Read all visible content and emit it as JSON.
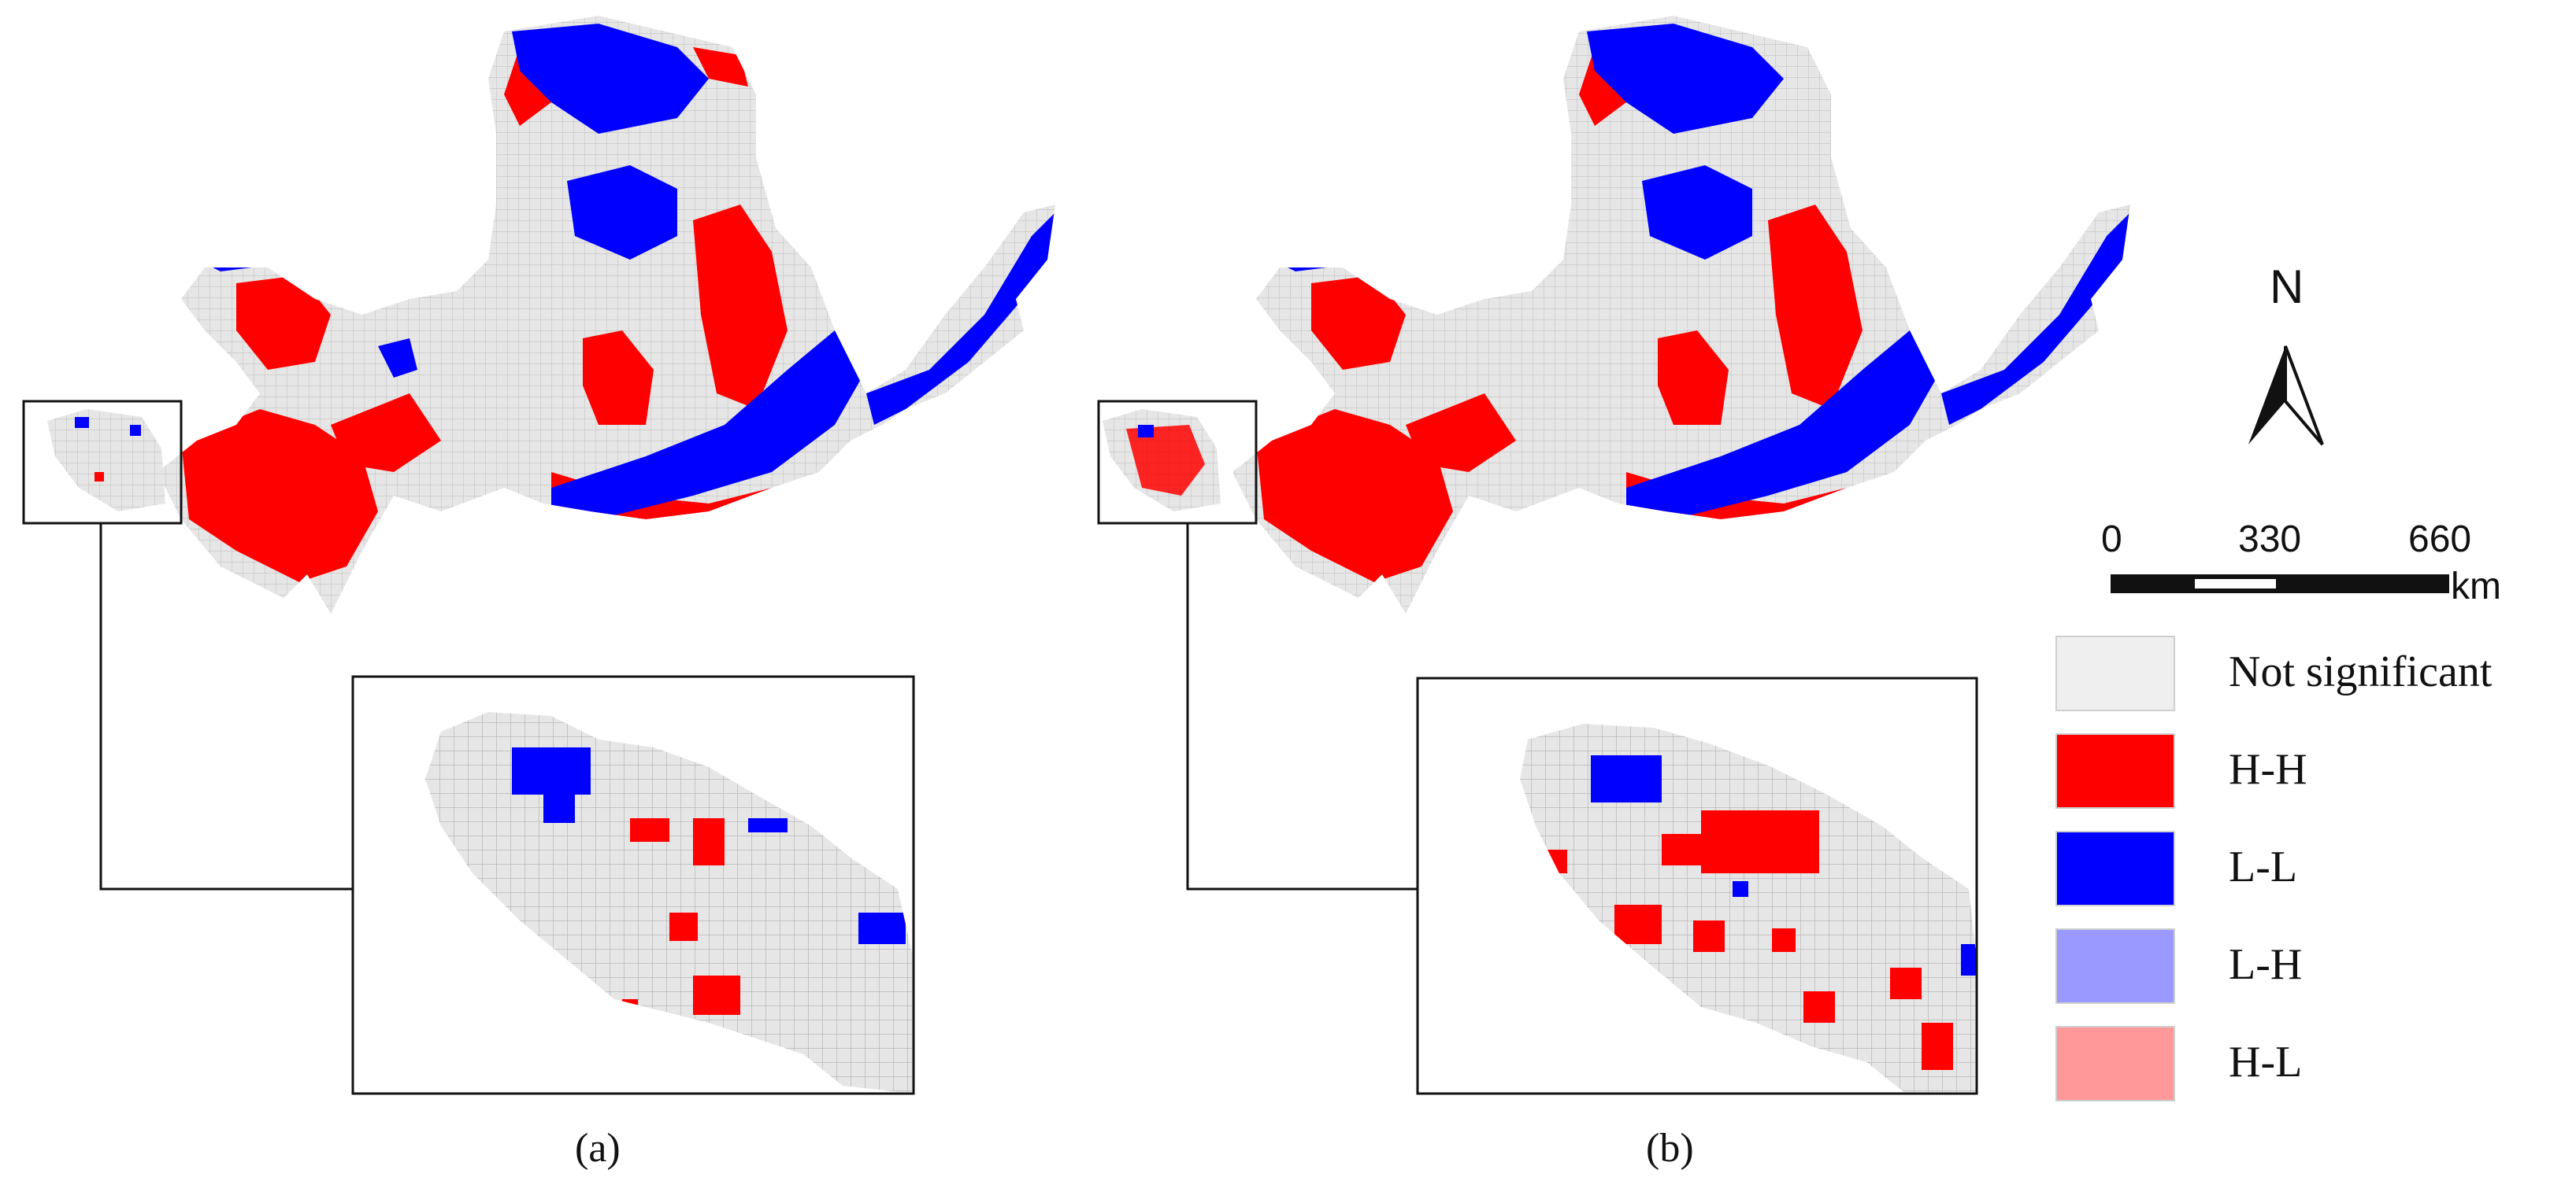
{
  "panels": [
    {
      "caption": "(a)"
    },
    {
      "caption": "(b)"
    }
  ],
  "north_arrow": {
    "label": "N"
  },
  "scale_bar": {
    "ticks": [
      "0",
      "330",
      "660"
    ],
    "unit": "km"
  },
  "legend": {
    "items": [
      {
        "label": "Not significant",
        "color": "#efefef"
      },
      {
        "label": "H-H",
        "color": "#ff0000"
      },
      {
        "label": "L-L",
        "color": "#0000ff"
      },
      {
        "label": "L-H",
        "color": "#9999ff"
      },
      {
        "label": "H-L",
        "color": "#ff9999"
      }
    ]
  }
}
